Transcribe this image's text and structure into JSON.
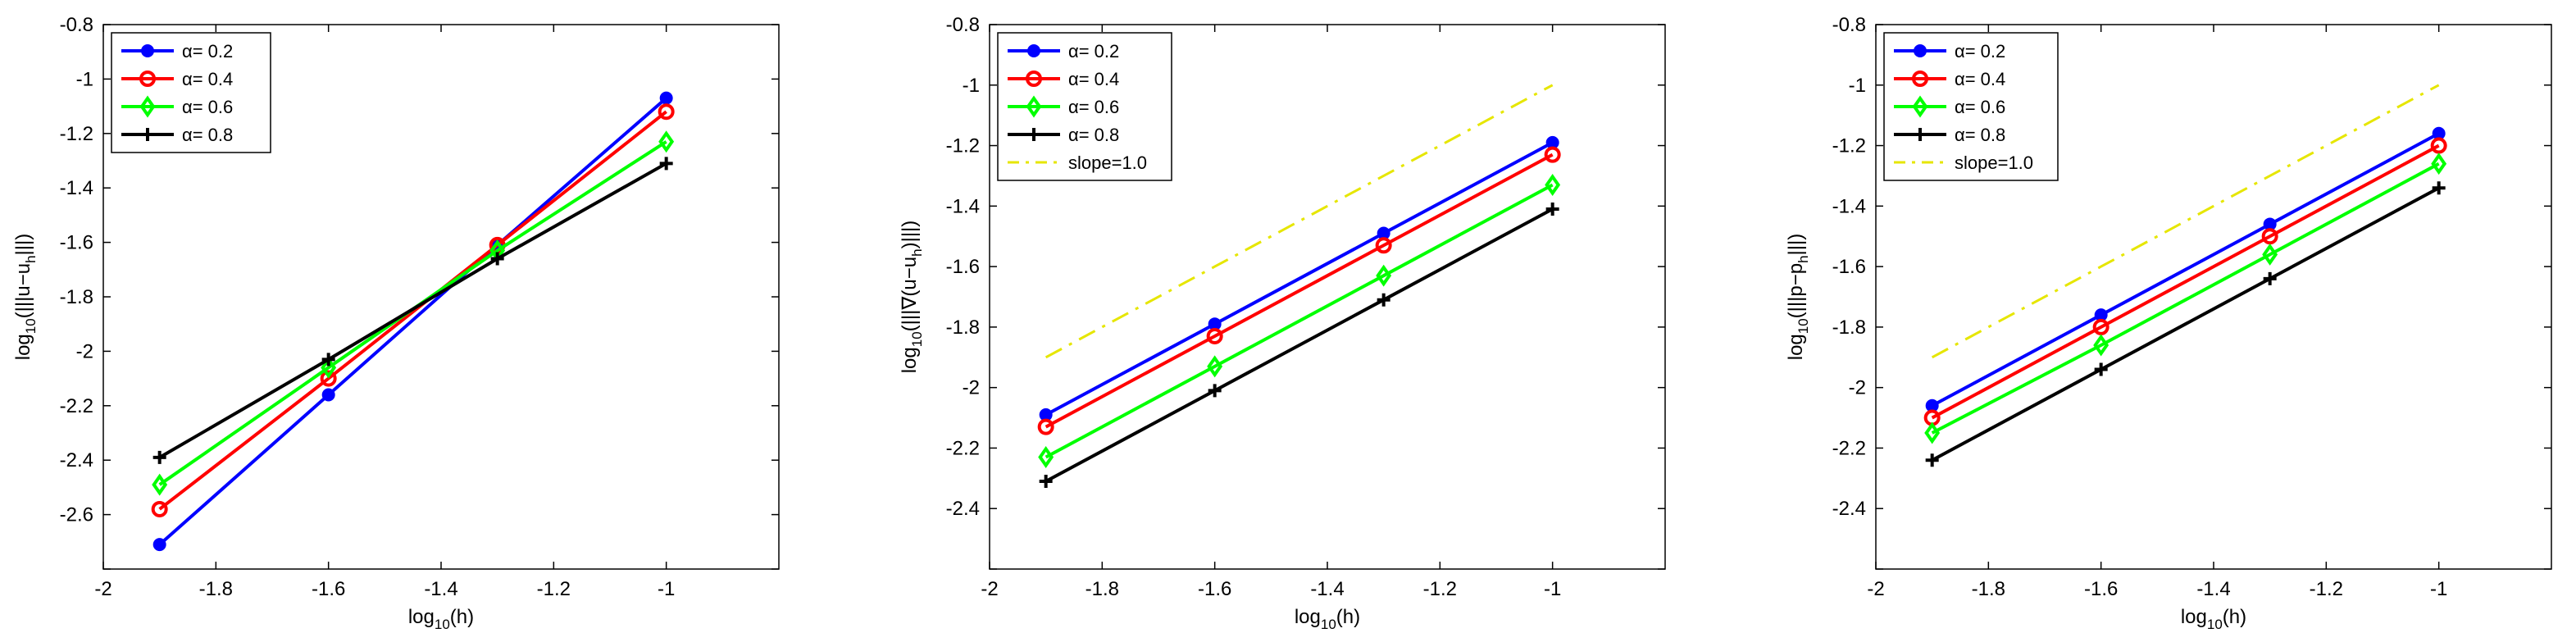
{
  "chart_data": [
    {
      "type": "line",
      "title": "",
      "xlabel": {
        "main": "log",
        "sub": "10",
        "rest": "(h)"
      },
      "ylabel": {
        "main": "log",
        "sub": "10",
        "pre": "(|||u−u",
        "sub2": "h",
        "post": "|||)"
      },
      "xlim": [
        -2,
        -0.8
      ],
      "ylim": [
        -2.8,
        -0.8
      ],
      "xticks": [
        -2,
        -1.8,
        -1.6,
        -1.4,
        -1.2,
        -1
      ],
      "yticks": [
        -2.8,
        -2.6,
        -2.4,
        -2.2,
        -2,
        -1.8,
        -1.6,
        -1.4,
        -1.2,
        -1,
        -0.8
      ],
      "xticklabels": [
        "-2",
        "-1.8",
        "-1.6",
        "-1.4",
        "-1.2",
        "-1"
      ],
      "yticklabels": [
        "",
        "-2.6",
        "-2.4",
        "-2.2",
        "-2",
        "-1.8",
        "-1.6",
        "-1.4",
        "-1.2",
        "-1",
        "-0.8"
      ],
      "x": [
        -1.9,
        -1.6,
        -1.3,
        -1.0
      ],
      "legend_position": "top-left",
      "series": [
        {
          "name": "α= 0.2",
          "color": "#0000ff",
          "marker": "dot",
          "values": [
            -2.71,
            -2.16,
            -1.61,
            -1.07
          ]
        },
        {
          "name": "α= 0.4",
          "color": "#ff0000",
          "marker": "circle",
          "values": [
            -2.58,
            -2.1,
            -1.61,
            -1.12
          ]
        },
        {
          "name": "α= 0.6",
          "color": "#00ff00",
          "marker": "diamond",
          "values": [
            -2.49,
            -2.06,
            -1.63,
            -1.23
          ]
        },
        {
          "name": "α= 0.8",
          "color": "#000000",
          "marker": "plus",
          "values": [
            -2.39,
            -2.03,
            -1.66,
            -1.31
          ]
        }
      ]
    },
    {
      "type": "line",
      "title": "",
      "xlabel": {
        "main": "log",
        "sub": "10",
        "rest": "(h)"
      },
      "ylabel": {
        "main": "log",
        "sub": "10",
        "pre": "(|||∇(u−u",
        "sub2": "h",
        "post": ")|||)"
      },
      "xlim": [
        -2,
        -0.8
      ],
      "ylim": [
        -2.6,
        -0.8
      ],
      "xticks": [
        -2,
        -1.8,
        -1.6,
        -1.4,
        -1.2,
        -1
      ],
      "yticks": [
        -2.6,
        -2.4,
        -2.2,
        -2,
        -1.8,
        -1.6,
        -1.4,
        -1.2,
        -1,
        -0.8
      ],
      "xticklabels": [
        "-2",
        "-1.8",
        "-1.6",
        "-1.4",
        "-1.2",
        "-1"
      ],
      "yticklabels": [
        "",
        "-2.4",
        "-2.2",
        "-2",
        "-1.8",
        "-1.6",
        "-1.4",
        "-1.2",
        "-1",
        "-0.8"
      ],
      "x": [
        -1.9,
        -1.6,
        -1.3,
        -1.0
      ],
      "legend_position": "top-left",
      "series": [
        {
          "name": "α= 0.2",
          "color": "#0000ff",
          "marker": "dot",
          "values": [
            -2.09,
            -1.79,
            -1.49,
            -1.19
          ]
        },
        {
          "name": "α= 0.4",
          "color": "#ff0000",
          "marker": "circle",
          "values": [
            -2.13,
            -1.83,
            -1.53,
            -1.23
          ]
        },
        {
          "name": "α= 0.6",
          "color": "#00ff00",
          "marker": "diamond",
          "values": [
            -2.23,
            -1.93,
            -1.63,
            -1.33
          ]
        },
        {
          "name": "α= 0.8",
          "color": "#000000",
          "marker": "plus",
          "values": [
            -2.31,
            -2.01,
            -1.71,
            -1.41
          ]
        },
        {
          "name": "slope=1.0",
          "color": "#e6e600",
          "marker": "none",
          "dash": true,
          "values": [
            -1.9,
            -1.6,
            -1.3,
            -1.0
          ]
        }
      ]
    },
    {
      "type": "line",
      "title": "",
      "xlabel": {
        "main": "log",
        "sub": "10",
        "rest": "(h)"
      },
      "ylabel": {
        "main": "log",
        "sub": "10",
        "pre": "(|||p−p",
        "sub2": "h",
        "post": "|||)"
      },
      "xlim": [
        -2,
        -0.8
      ],
      "ylim": [
        -2.6,
        -0.8
      ],
      "xticks": [
        -2,
        -1.8,
        -1.6,
        -1.4,
        -1.2,
        -1
      ],
      "yticks": [
        -2.6,
        -2.4,
        -2.2,
        -2,
        -1.8,
        -1.6,
        -1.4,
        -1.2,
        -1,
        -0.8
      ],
      "xticklabels": [
        "-2",
        "-1.8",
        "-1.6",
        "-1.4",
        "-1.2",
        "-1"
      ],
      "yticklabels": [
        "",
        "-2.4",
        "-2.2",
        "-2",
        "-1.8",
        "-1.6",
        "-1.4",
        "-1.2",
        "-1",
        "-0.8"
      ],
      "x": [
        -1.9,
        -1.6,
        -1.3,
        -1.0
      ],
      "legend_position": "top-left",
      "series": [
        {
          "name": "α= 0.2",
          "color": "#0000ff",
          "marker": "dot",
          "values": [
            -2.06,
            -1.76,
            -1.46,
            -1.16
          ]
        },
        {
          "name": "α= 0.4",
          "color": "#ff0000",
          "marker": "circle",
          "values": [
            -2.1,
            -1.8,
            -1.5,
            -1.2
          ]
        },
        {
          "name": "α= 0.6",
          "color": "#00ff00",
          "marker": "diamond",
          "values": [
            -2.15,
            -1.86,
            -1.56,
            -1.26
          ]
        },
        {
          "name": "α= 0.8",
          "color": "#000000",
          "marker": "plus",
          "values": [
            -2.24,
            -1.94,
            -1.64,
            -1.34
          ]
        },
        {
          "name": "slope=1.0",
          "color": "#e6e600",
          "marker": "none",
          "dash": true,
          "values": [
            -1.9,
            -1.6,
            -1.3,
            -1.0
          ]
        }
      ]
    }
  ]
}
